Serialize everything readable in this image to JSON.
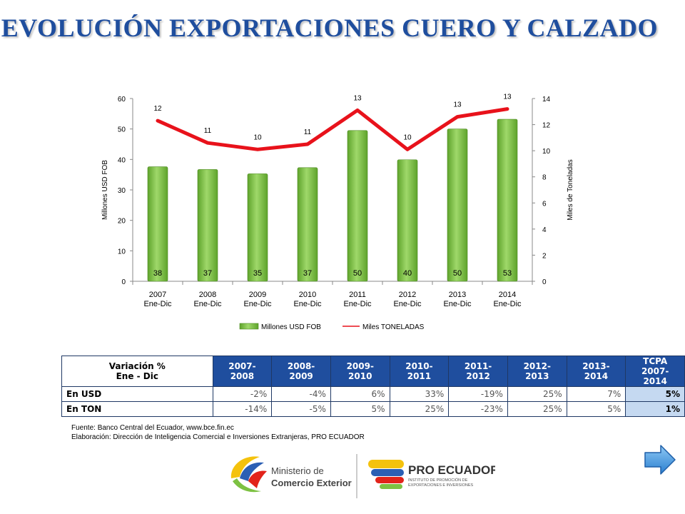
{
  "title": "EVOLUCIÓN EXPORTACIONES CUERO Y CALZADO",
  "chart_data": {
    "type": "bar+line",
    "categories": [
      [
        "2007",
        "Ene-Dic"
      ],
      [
        "2008",
        "Ene-Dic"
      ],
      [
        "2009",
        "Ene-Dic"
      ],
      [
        "2010",
        "Ene-Dic"
      ],
      [
        "2011",
        "Ene-Dic"
      ],
      [
        "2012",
        "Ene-Dic"
      ],
      [
        "2013",
        "Ene-Dic"
      ],
      [
        "2014",
        "Ene-Dic"
      ]
    ],
    "bar_series": {
      "name": "Millones USD FOB",
      "values": [
        37.6,
        36.7,
        35.3,
        37.3,
        49.5,
        39.9,
        50.0,
        53.2
      ],
      "labels": [
        "38",
        "37",
        "35",
        "37",
        "50",
        "40",
        "50",
        "53"
      ],
      "color": "#7dc142"
    },
    "line_series": {
      "name": "Miles TONELADAS",
      "values": [
        12.3,
        10.6,
        10.1,
        10.5,
        13.1,
        10.1,
        12.6,
        13.2
      ],
      "labels": [
        "12",
        "11",
        "10",
        "11",
        "13",
        "10",
        "13",
        "13"
      ],
      "color": "#e8121b"
    },
    "ylabel_left": "Millones USD FOB",
    "ylabel_right": "Miles  de  Toneladas",
    "ylim_left": [
      0,
      60
    ],
    "yticks_left": [
      0,
      10,
      20,
      30,
      40,
      50,
      60
    ],
    "ylim_right": [
      0,
      14
    ],
    "yticks_right": [
      0,
      2,
      4,
      6,
      8,
      10,
      12,
      14
    ],
    "grid": false,
    "legend": "bottom"
  },
  "table": {
    "header_line1": "Variación %",
    "header_line2": "Ene - Dic",
    "columns": [
      "2007-2008",
      "2008-2009",
      "2009-2010",
      "2010-2011",
      "2011-2012",
      "2012-2013",
      "2013-2014"
    ],
    "tcpa_line1": "TCPA",
    "tcpa_line2": "2007-2014",
    "rows": [
      {
        "label": "En USD",
        "values": [
          "-2%",
          "-4%",
          "6%",
          "33%",
          "-19%",
          "25%",
          "7%"
        ],
        "tcpa": "5%"
      },
      {
        "label": "En TON",
        "values": [
          "-14%",
          "-5%",
          "5%",
          "25%",
          "-23%",
          "25%",
          "5%"
        ],
        "tcpa": "1%"
      }
    ]
  },
  "source": {
    "line1": "Fuente: Banco Central del Ecuador, www.bce.fin.ec",
    "line2": "Elaboración: Dirección de Inteligencia Comercial e Inversiones Extranjeras, PRO ECUADOR"
  },
  "logos": {
    "ministerio_line1": "Ministerio de",
    "ministerio_line2": "Comercio Exterior",
    "proecuador_name": "PRO ECUADOR",
    "proecuador_sub1": "INSTITUTO DE PROMOCIÓN DE",
    "proecuador_sub2": "EXPORTACIONES E INVERSIONES"
  },
  "colors": {
    "title": "#1f4e9e",
    "table_header": "#1f4e9e",
    "tcpa_cell": "#c5d9f1"
  }
}
